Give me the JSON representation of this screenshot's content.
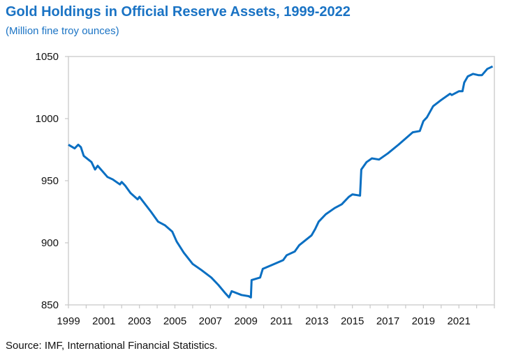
{
  "chart_data": {
    "type": "line",
    "title": "Gold Holdings in Official Reserve Assets, 1999-2022",
    "subtitle": "(Million fine troy ounces)",
    "source": "Source: IMF, International Financial Statistics.",
    "xlabel": "",
    "ylabel": "",
    "xlim": [
      1999,
      2023
    ],
    "ylim": [
      850,
      1050
    ],
    "x_ticks": [
      "1999",
      "2001",
      "2003",
      "2005",
      "2007",
      "2009",
      "2011",
      "2013",
      "2015",
      "2017",
      "2019",
      "2021"
    ],
    "y_ticks": [
      "850",
      "900",
      "950",
      "1000",
      "1050"
    ],
    "grid": false,
    "legend": "none",
    "line_color": "#0a6fc2",
    "series": [
      {
        "x": [
          1999.0,
          1999.35,
          1999.55,
          1999.7,
          1999.86,
          2000.3,
          2000.5,
          2000.65,
          2001.2,
          2001.5,
          2001.9,
          2002.0,
          2002.2,
          2002.5,
          2002.9,
          2003.0,
          2003.65,
          2004.05,
          2004.45,
          2004.85,
          2005.1,
          2005.5,
          2006.0,
          2006.5,
          2007.05,
          2007.45,
          2007.8,
          2008.05,
          2008.2,
          2008.75,
          2009.15,
          2009.28,
          2009.32,
          2009.8,
          2009.95,
          2010.45,
          2011.1,
          2011.3,
          2011.75,
          2012.0,
          2012.7,
          2012.9,
          2013.1,
          2013.5,
          2014.0,
          2014.4,
          2014.8,
          2015.0,
          2015.43,
          2015.5,
          2015.8,
          2016.1,
          2016.5,
          2017.0,
          2017.6,
          2018.0,
          2018.4,
          2018.8,
          2019.0,
          2019.2,
          2019.55,
          2020.0,
          2020.5,
          2020.6,
          2021.0,
          2021.2,
          2021.3,
          2021.5,
          2021.8,
          2022.1,
          2022.3,
          2022.6,
          2022.9
        ],
        "y": [
          979,
          976,
          979,
          977,
          970,
          965,
          959,
          962,
          953,
          951,
          947,
          949,
          946,
          940,
          935,
          937,
          925,
          917,
          914,
          909,
          901,
          892,
          883,
          878,
          872,
          866,
          860,
          856,
          861,
          858,
          857,
          856,
          870,
          872,
          879,
          882,
          886,
          890,
          893,
          898,
          906,
          911,
          917,
          923,
          928,
          931,
          937,
          939,
          938,
          959,
          965,
          968,
          967,
          972,
          979,
          984,
          989,
          990,
          998,
          1001,
          1010,
          1015,
          1020,
          1019,
          1022,
          1022,
          1029,
          1034,
          1036,
          1035,
          1035,
          1040,
          1042
        ]
      }
    ]
  }
}
